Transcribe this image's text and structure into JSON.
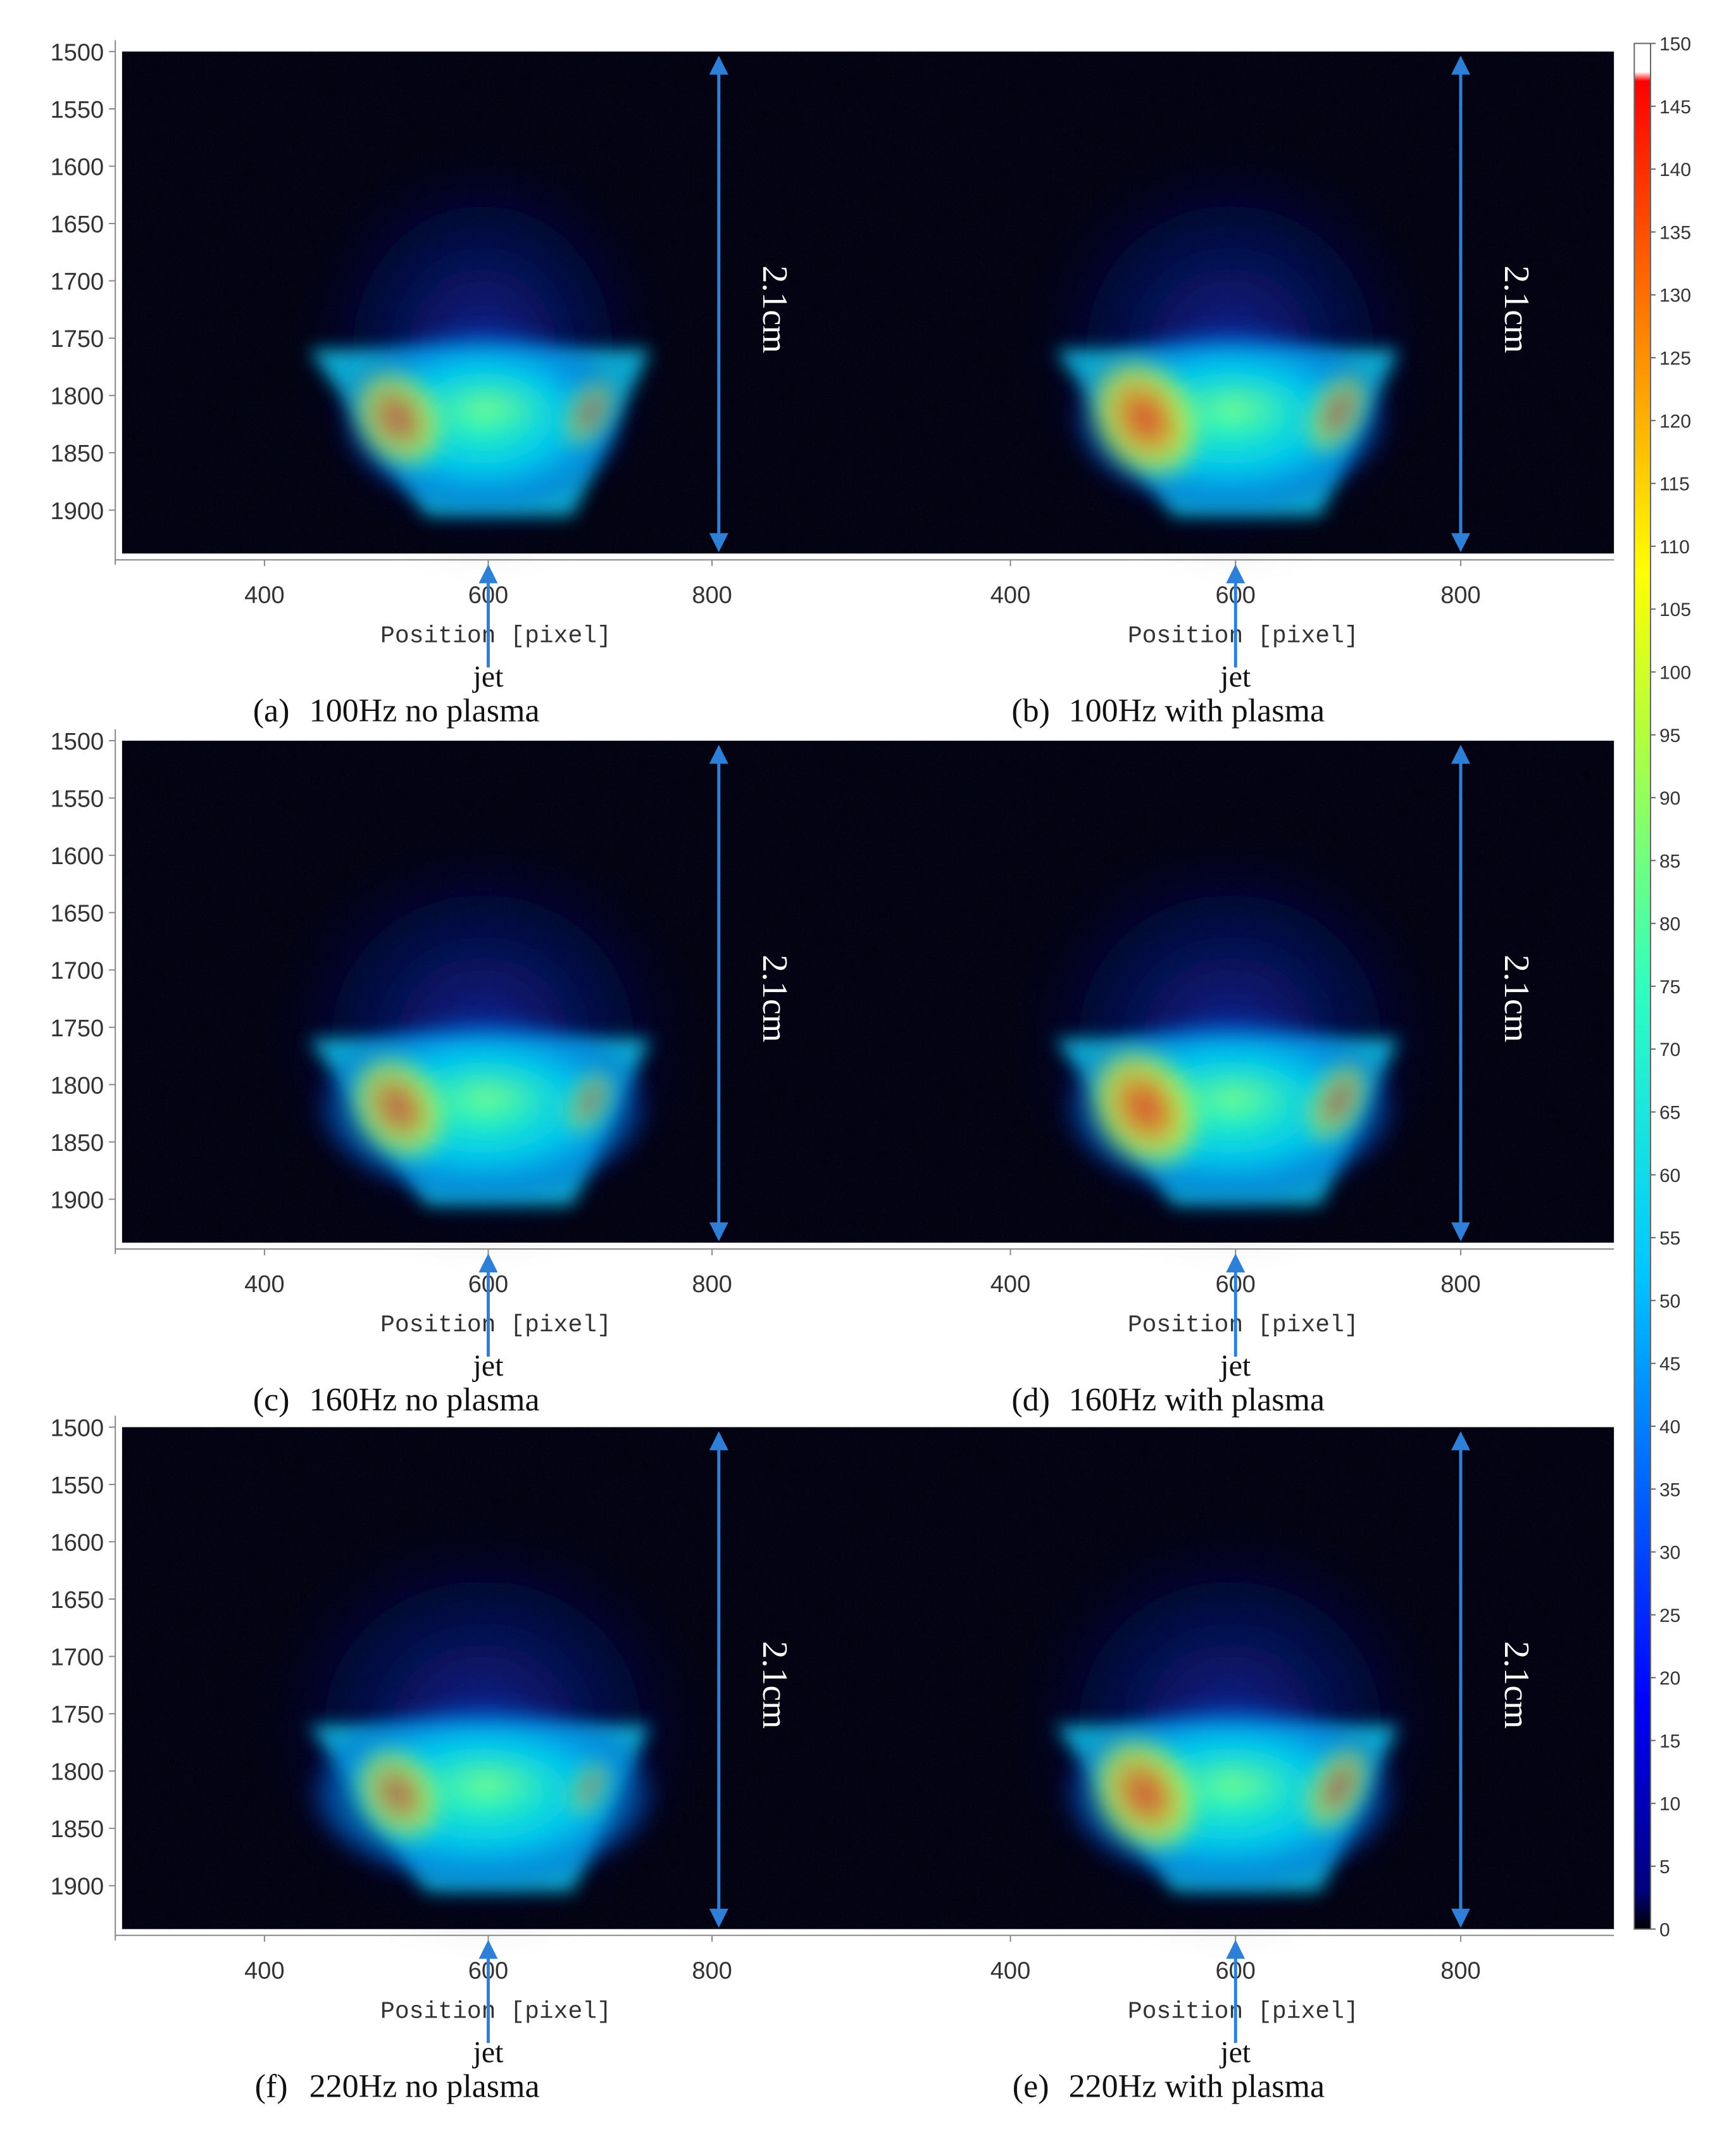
{
  "chart_data": {
    "type": "heatmap",
    "colormap": "jet",
    "grid": false,
    "colorbar": {
      "min": 0,
      "max": 150,
      "ticks": [
        0,
        5,
        10,
        15,
        20,
        25,
        30,
        35,
        40,
        45,
        50,
        55,
        60,
        65,
        70,
        75,
        80,
        85,
        90,
        95,
        100,
        105,
        110,
        115,
        120,
        125,
        130,
        135,
        140,
        145,
        150
      ],
      "placement": "right"
    },
    "y_ticks": [
      1500,
      1550,
      1600,
      1650,
      1700,
      1750,
      1800,
      1850,
      1900
    ],
    "x_ticks": [
      400,
      600,
      800
    ],
    "xlabel": "Position [pixel]",
    "xlim": [
      290,
      930
    ],
    "ylim": [
      1935,
      1495
    ],
    "dimension_label": "2.1cm",
    "jet_label": "jet",
    "jet_position": 600,
    "panels": [
      {
        "row": 0,
        "col": 0,
        "letter": "(a)",
        "caption": "100Hz no plasma",
        "hot_left": 1.0,
        "hot_right": 0.85,
        "spread": 0.9
      },
      {
        "row": 0,
        "col": 1,
        "letter": "(b)",
        "caption": "100Hz with plasma",
        "hot_left": 1.2,
        "hot_right": 1.0,
        "spread": 1.0
      },
      {
        "row": 1,
        "col": 0,
        "letter": "(c)",
        "caption": "160Hz no plasma",
        "hot_left": 1.05,
        "hot_right": 0.8,
        "spread": 1.05
      },
      {
        "row": 1,
        "col": 1,
        "letter": "(d)",
        "caption": "160Hz with plasma",
        "hot_left": 1.2,
        "hot_right": 1.0,
        "spread": 1.05
      },
      {
        "row": 2,
        "col": 0,
        "letter": "(f)",
        "caption": "220Hz no plasma",
        "hot_left": 0.95,
        "hot_right": 0.7,
        "spread": 1.1
      },
      {
        "row": 2,
        "col": 1,
        "letter": "(e)",
        "caption": "220Hz with plasma",
        "hot_left": 1.15,
        "hot_right": 1.05,
        "spread": 1.05
      }
    ]
  }
}
